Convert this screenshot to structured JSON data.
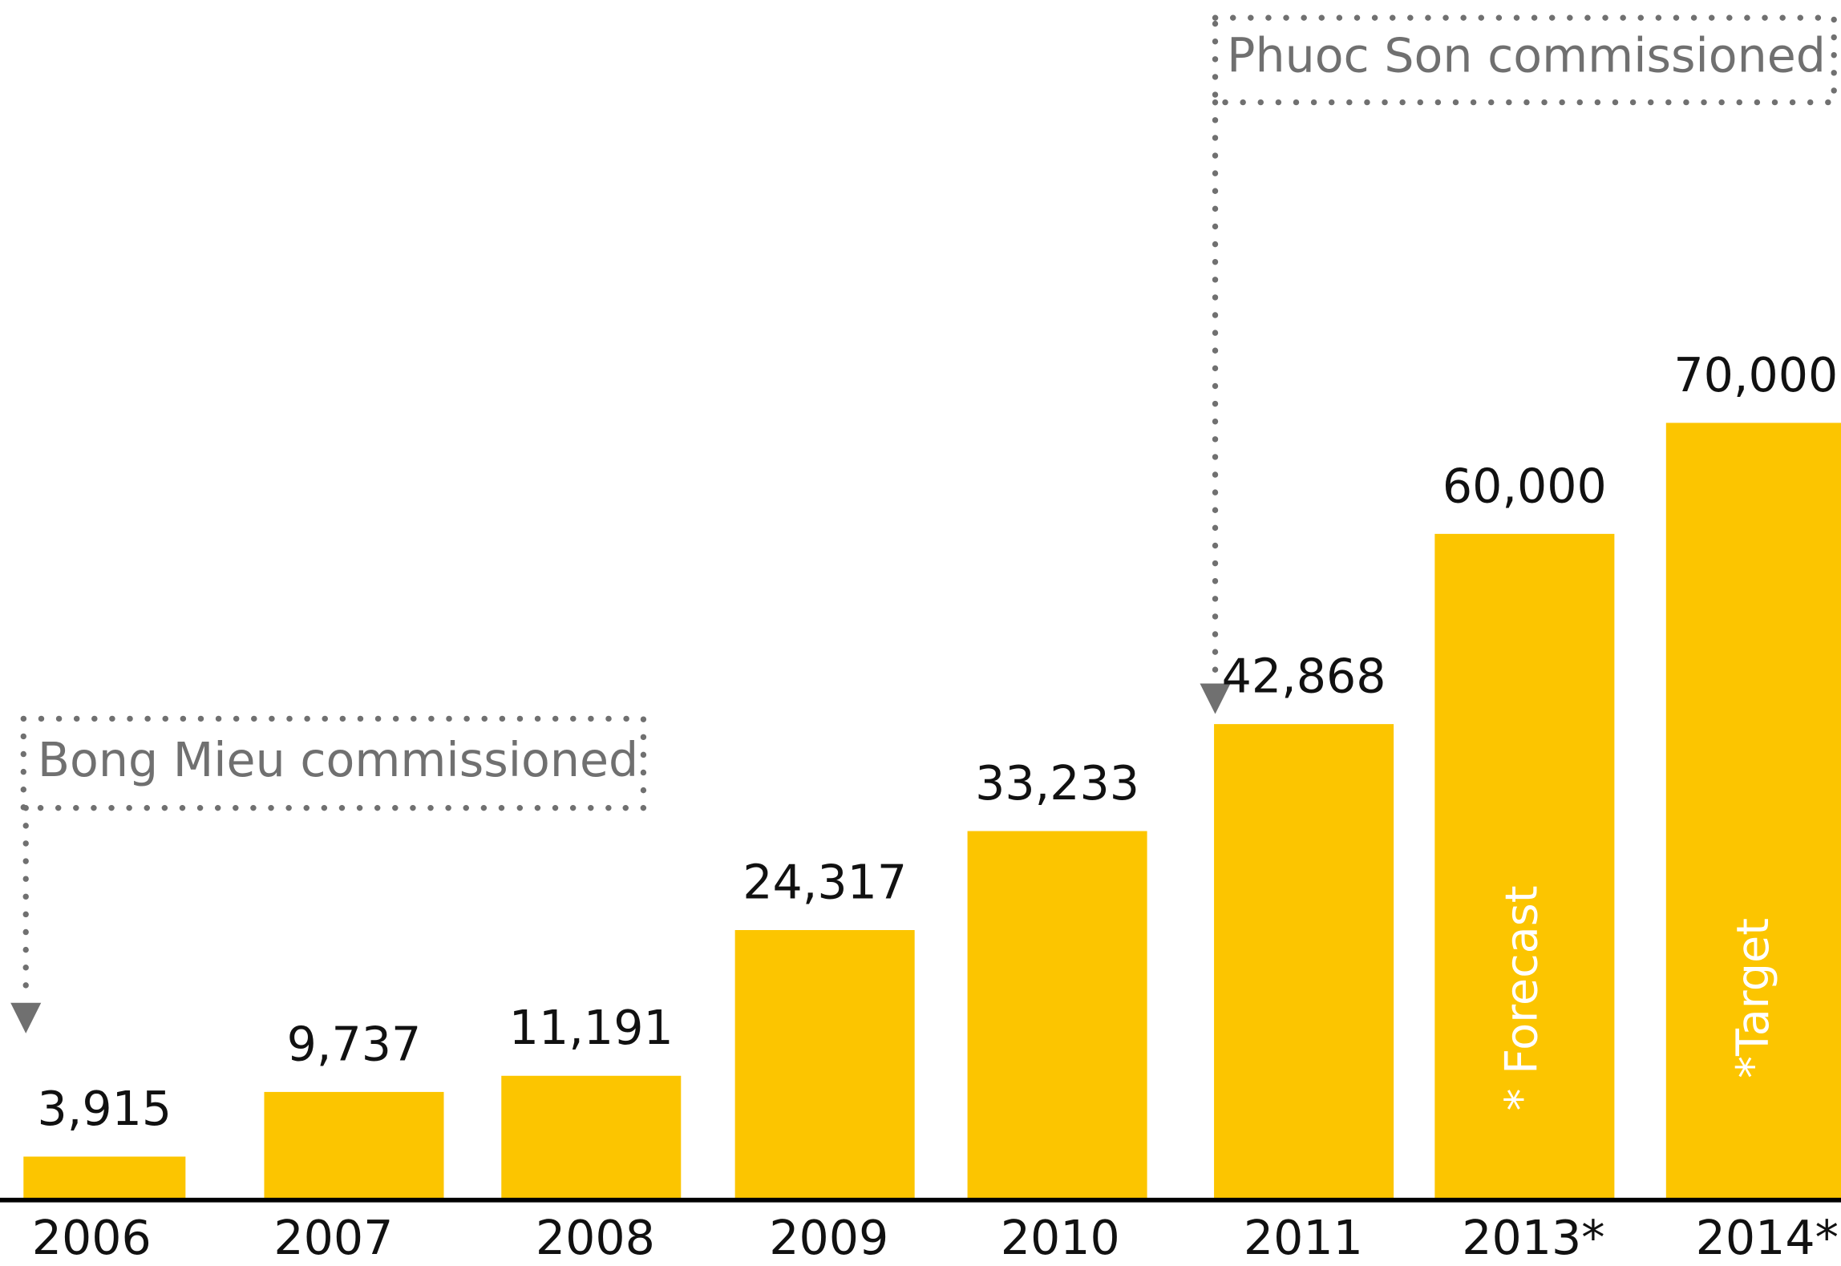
{
  "chart_data": {
    "type": "bar",
    "categories": [
      "2006",
      "2007",
      "2008",
      "2009",
      "2010",
      "2011",
      "2013*",
      "2014*"
    ],
    "values": [
      3915,
      9737,
      11191,
      24317,
      33233,
      42868,
      60000,
      70000
    ],
    "value_labels": [
      "3,915",
      "9,737",
      "11,191",
      "24,317",
      "33,233",
      "42,868",
      "60,000",
      "70,000"
    ],
    "bar_notes": [
      null,
      null,
      null,
      null,
      null,
      null,
      "* Forecast",
      "*Target"
    ],
    "annotations": [
      "Bong Mieu commissioned",
      "Phuoc Son commissioned"
    ],
    "color": "#fcc500"
  }
}
